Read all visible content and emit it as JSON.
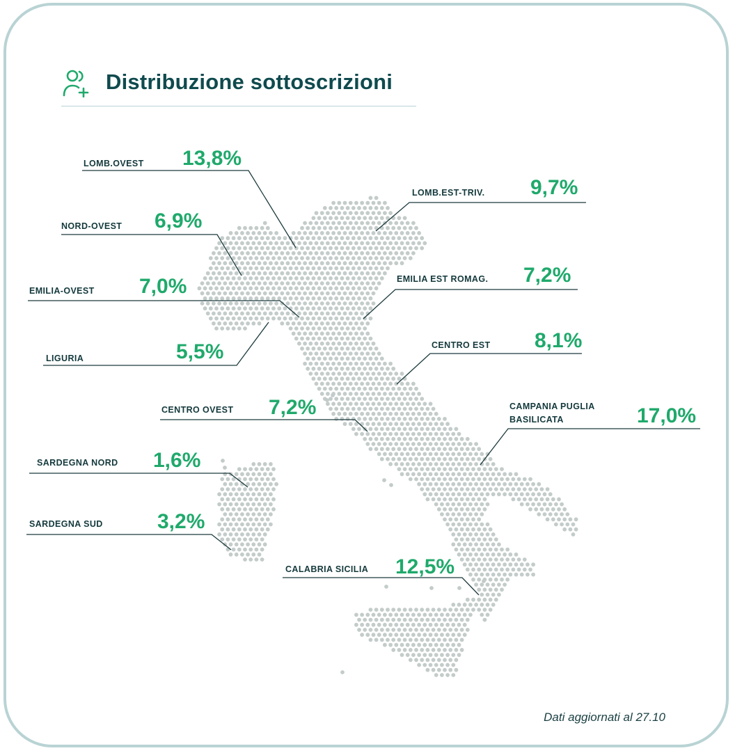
{
  "header": {
    "title": "Distribuzione sottoscrizioni",
    "icon": "user-plus-icon"
  },
  "regions": [
    {
      "id": "lomb-ovest",
      "label": "LOMB.OVEST",
      "value": "13,8%"
    },
    {
      "id": "lomb-est-triv",
      "label": "LOMB.EST-TRIV.",
      "value": "9,7%"
    },
    {
      "id": "nord-ovest",
      "label": "NORD-OVEST",
      "value": "6,9%"
    },
    {
      "id": "emilia-ovest",
      "label": "EMILIA-OVEST",
      "value": "7,0%"
    },
    {
      "id": "emilia-est-romag",
      "label": "EMILIA EST ROMAG.",
      "value": "7,2%"
    },
    {
      "id": "liguria",
      "label": "LIGURIA",
      "value": "5,5%"
    },
    {
      "id": "centro-est",
      "label": "CENTRO EST",
      "value": "8,1%"
    },
    {
      "id": "centro-ovest",
      "label": "CENTRO OVEST",
      "value": "7,2%"
    },
    {
      "id": "campania-puglia-basilicata",
      "label_line1": "CAMPANIA PUGLIA",
      "label_line2": "BASILICATA",
      "value": "17,0%"
    },
    {
      "id": "sardegna-nord",
      "label": "SARDEGNA NORD",
      "value": "1,6%"
    },
    {
      "id": "sardegna-sud",
      "label": "SARDEGNA SUD",
      "value": "3,2%"
    },
    {
      "id": "calabria-sicilia",
      "label": "CALABRIA SICILIA",
      "value": "12,5%"
    }
  ],
  "footer": {
    "note": "Dati aggiornati al 27.10"
  },
  "colors": {
    "accent": "#1fa96b",
    "title": "#0f4a4e",
    "dots": "#c3ccca",
    "lines": "#1c3a3d",
    "border": "#b9d3d4"
  }
}
